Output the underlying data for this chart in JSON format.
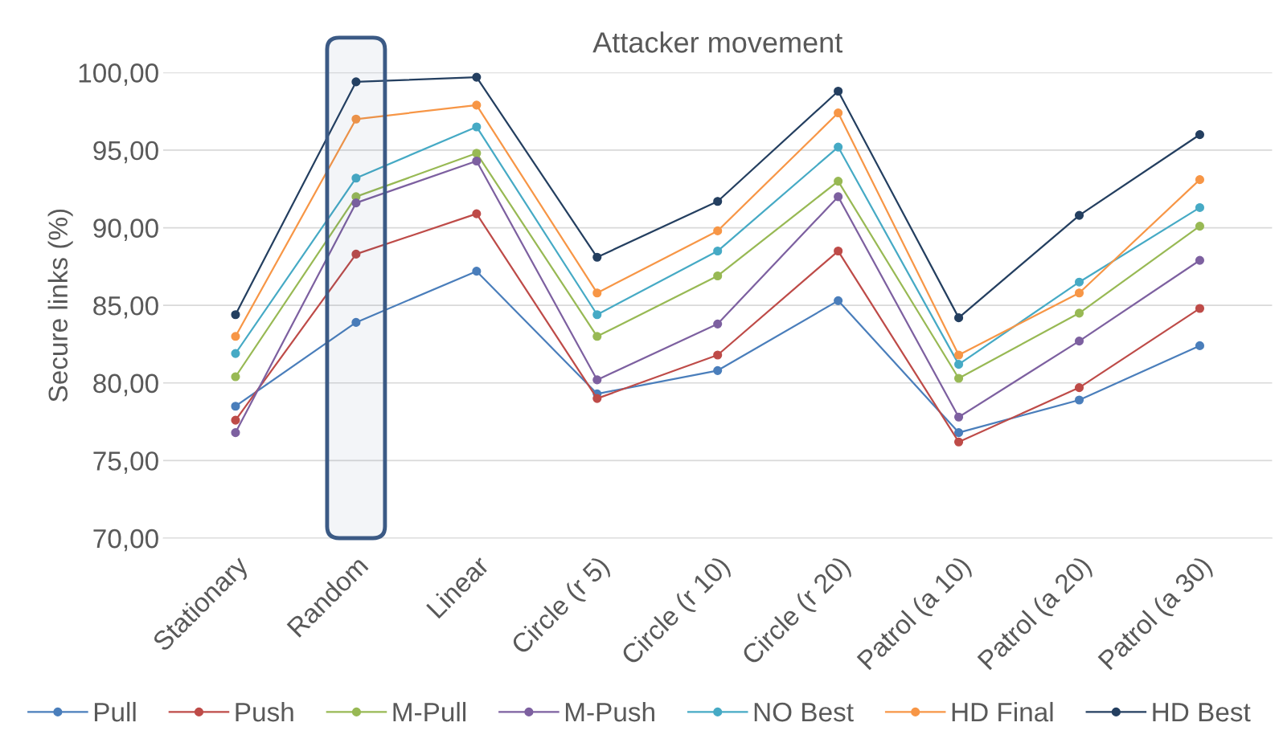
{
  "chart_data": {
    "type": "line",
    "title": "Attacker movement",
    "ylabel": "Secure links (%)",
    "categories": [
      "Stationary",
      "Random",
      "Linear",
      "Circle (r 5)",
      "Circle (r 10)",
      "Circle (r 20)",
      "Patrol (a 10)",
      "Patrol (a 20)",
      "Patrol (a 30)"
    ],
    "series": [
      {
        "name": "Pull",
        "color": "#4a7ebb",
        "values": [
          78.5,
          83.9,
          87.2,
          79.3,
          80.8,
          85.3,
          76.8,
          78.9,
          82.4
        ]
      },
      {
        "name": "Push",
        "color": "#be4b48",
        "values": [
          77.6,
          88.3,
          90.9,
          79.0,
          81.8,
          88.5,
          76.2,
          79.7,
          84.8
        ]
      },
      {
        "name": "M-Pull",
        "color": "#98b954",
        "values": [
          80.4,
          92.0,
          94.8,
          83.0,
          86.9,
          93.0,
          80.3,
          84.5,
          90.1
        ]
      },
      {
        "name": "M-Push",
        "color": "#7d60a0",
        "values": [
          76.8,
          91.6,
          94.3,
          80.2,
          83.8,
          92.0,
          77.8,
          82.7,
          87.9
        ]
      },
      {
        "name": "NO Best",
        "color": "#46aac5",
        "values": [
          81.9,
          93.2,
          96.5,
          84.4,
          88.5,
          95.2,
          81.2,
          86.5,
          91.3
        ]
      },
      {
        "name": "HD Final",
        "color": "#f79646",
        "values": [
          83.0,
          97.0,
          97.9,
          85.8,
          89.8,
          97.4,
          81.8,
          85.8,
          93.1
        ]
      },
      {
        "name": "HD Best",
        "color": "#243f60",
        "values": [
          84.4,
          99.4,
          99.7,
          88.1,
          91.7,
          98.8,
          84.2,
          90.8,
          96.0
        ]
      }
    ],
    "ylim": [
      70,
      100
    ],
    "yticks": [
      {
        "value": 70,
        "label": "70,00"
      },
      {
        "value": 75,
        "label": "75,00"
      },
      {
        "value": 80,
        "label": "80,00"
      },
      {
        "value": 85,
        "label": "85,00"
      },
      {
        "value": 90,
        "label": "90,00"
      },
      {
        "value": 95,
        "label": "95,00"
      },
      {
        "value": 100,
        "label": "100,00"
      }
    ],
    "bands": [
      {
        "axis": "x",
        "from": "Random",
        "to": "Random",
        "color": "#3b5a85"
      }
    ],
    "grid": "y",
    "legend": "bottom",
    "marker": "circle",
    "line_style": "solid"
  }
}
